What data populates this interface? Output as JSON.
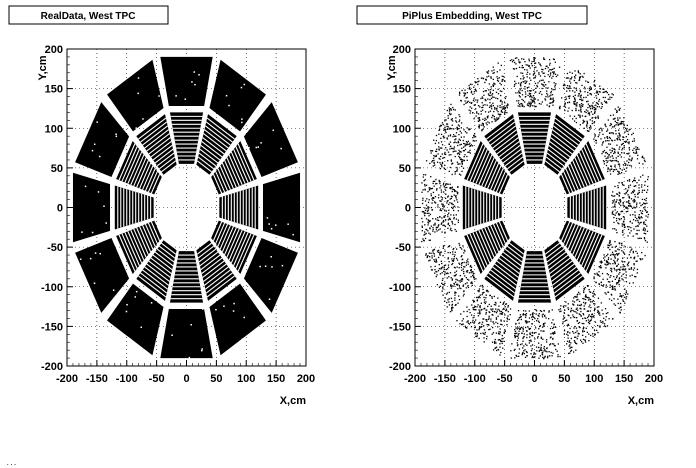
{
  "chart_data": [
    {
      "type": "scatter",
      "title": "RealData, West TPC",
      "xlabel": "X,cm",
      "ylabel": "Y,cm",
      "xlim": [
        -200,
        200
      ],
      "ylim": [
        -200,
        200
      ],
      "xticks": [
        "-200",
        "-150",
        "-100",
        "-50",
        "0",
        "50",
        "100",
        "150",
        "200"
      ],
      "yticks": [
        "-200",
        "-150",
        "-100",
        "-50",
        "0",
        "50",
        "100",
        "150",
        "200"
      ],
      "grid": true,
      "sectors": 12,
      "inner_radius_range": [
        55,
        120
      ],
      "outer_radius_range": [
        128,
        190
      ],
      "outer_fill": "dense"
    },
    {
      "type": "scatter",
      "title": "PiPlus Embedding, West TPC",
      "xlabel": "X,cm",
      "ylabel": "Y,cm",
      "xlim": [
        -200,
        200
      ],
      "ylim": [
        -200,
        200
      ],
      "xticks": [
        "-200",
        "-150",
        "-100",
        "-50",
        "0",
        "50",
        "100",
        "150",
        "200"
      ],
      "yticks": [
        "-200",
        "-150",
        "-100",
        "-50",
        "0",
        "50",
        "100",
        "150",
        "200"
      ],
      "grid": true,
      "sectors": 12,
      "inner_radius_range": [
        55,
        120
      ],
      "outer_radius_range": [
        128,
        190
      ],
      "outer_fill": "sparse"
    }
  ],
  "footer_text": "...",
  "colors": {
    "ink": "#000000",
    "paper": "#ffffff"
  }
}
